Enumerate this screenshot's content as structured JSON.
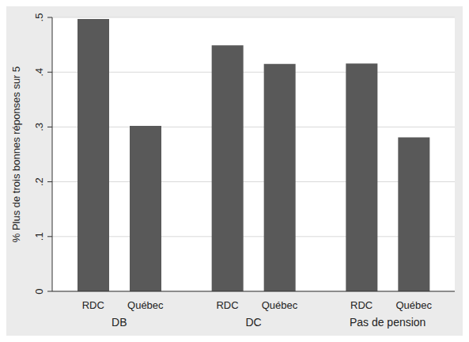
{
  "chart_data": {
    "type": "bar",
    "y_label": "% Plus de trois bonnes réponses sur 5",
    "categories": [
      "DB",
      "DC",
      "Pas de pension"
    ],
    "series": [
      {
        "name": "RDC",
        "color": "#595959",
        "values": [
          0.497,
          0.449,
          0.416
        ]
      },
      {
        "name": "Québec",
        "color": "#595959",
        "values": [
          0.302,
          0.415,
          0.281
        ]
      }
    ],
    "ylim": [
      0,
      0.5
    ],
    "yticks": [
      0,
      {
        "value": 0.1,
        "label": ".1"
      },
      {
        "value": 0.2,
        "label": ".2"
      },
      {
        "value": 0.3,
        "label": ".3"
      },
      {
        "value": 0.4,
        "label": ".4"
      },
      {
        "value": 0.5,
        "label": ".5"
      }
    ],
    "grid": true
  }
}
